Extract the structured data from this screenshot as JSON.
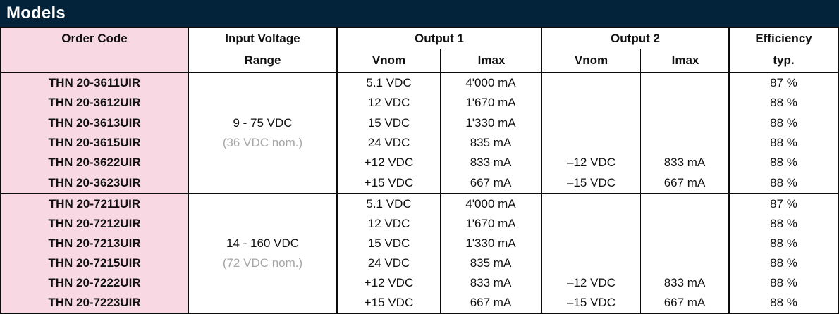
{
  "title": "Models",
  "colors": {
    "title_bar_bg": "#02233a",
    "title_text": "#ffffff",
    "order_code_bg": "#f8d9e3",
    "nominal_note_gray": "#a6a6a8",
    "border": "#0c0c0c"
  },
  "table": {
    "header": {
      "order_code": "Order Code",
      "input_voltage_line1": "Input Voltage",
      "input_voltage_line2": "Range",
      "output1_label": "Output 1",
      "output1_vnom": "Vnom",
      "output1_imax": "Imax",
      "output2_label": "Output 2",
      "output2_vnom": "Vnom",
      "output2_imax": "Imax",
      "efficiency_line1": "Efficiency",
      "efficiency_line2": "typ."
    },
    "groups": [
      {
        "input_range": "9 - 75 VDC",
        "input_nominal": "(36 VDC nom.)",
        "rows": [
          {
            "order_code": "THN 20-3611UIR",
            "out1_vnom": "5.1 VDC",
            "out1_imax": "4'000 mA",
            "out2_vnom": "",
            "out2_imax": "",
            "efficiency": "87 %"
          },
          {
            "order_code": "THN 20-3612UIR",
            "out1_vnom": "12 VDC",
            "out1_imax": "1'670 mA",
            "out2_vnom": "",
            "out2_imax": "",
            "efficiency": "88 %"
          },
          {
            "order_code": "THN 20-3613UIR",
            "out1_vnom": "15 VDC",
            "out1_imax": "1'330 mA",
            "out2_vnom": "",
            "out2_imax": "",
            "efficiency": "88 %"
          },
          {
            "order_code": "THN 20-3615UIR",
            "out1_vnom": "24 VDC",
            "out1_imax": "835 mA",
            "out2_vnom": "",
            "out2_imax": "",
            "efficiency": "88 %"
          },
          {
            "order_code": "THN 20-3622UIR",
            "out1_vnom": "+12 VDC",
            "out1_imax": "833 mA",
            "out2_vnom": "–12 VDC",
            "out2_imax": "833 mA",
            "efficiency": "88 %"
          },
          {
            "order_code": "THN 20-3623UIR",
            "out1_vnom": "+15 VDC",
            "out1_imax": "667 mA",
            "out2_vnom": "–15 VDC",
            "out2_imax": "667 mA",
            "efficiency": "88 %"
          }
        ]
      },
      {
        "input_range": "14 - 160 VDC",
        "input_nominal": "(72 VDC nom.)",
        "rows": [
          {
            "order_code": "THN 20-7211UIR",
            "out1_vnom": "5.1 VDC",
            "out1_imax": "4'000 mA",
            "out2_vnom": "",
            "out2_imax": "",
            "efficiency": "87 %"
          },
          {
            "order_code": "THN 20-7212UIR",
            "out1_vnom": "12 VDC",
            "out1_imax": "1'670 mA",
            "out2_vnom": "",
            "out2_imax": "",
            "efficiency": "88 %"
          },
          {
            "order_code": "THN 20-7213UIR",
            "out1_vnom": "15 VDC",
            "out1_imax": "1'330 mA",
            "out2_vnom": "",
            "out2_imax": "",
            "efficiency": "88 %"
          },
          {
            "order_code": "THN 20-7215UIR",
            "out1_vnom": "24 VDC",
            "out1_imax": "835 mA",
            "out2_vnom": "",
            "out2_imax": "",
            "efficiency": "88 %"
          },
          {
            "order_code": "THN 20-7222UIR",
            "out1_vnom": "+12 VDC",
            "out1_imax": "833 mA",
            "out2_vnom": "–12 VDC",
            "out2_imax": "833 mA",
            "efficiency": "88 %"
          },
          {
            "order_code": "THN 20-7223UIR",
            "out1_vnom": "+15 VDC",
            "out1_imax": "667 mA",
            "out2_vnom": "–15 VDC",
            "out2_imax": "667 mA",
            "efficiency": "88 %"
          }
        ]
      }
    ]
  }
}
